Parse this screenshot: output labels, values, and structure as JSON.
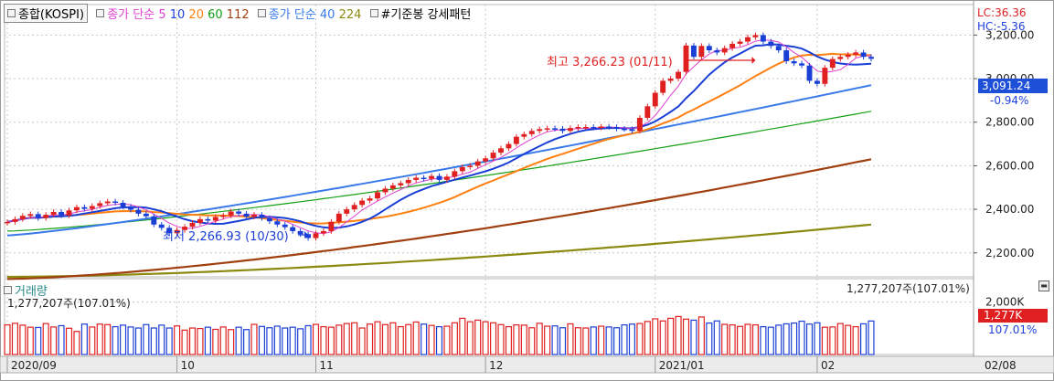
{
  "legend": {
    "index_name": "종합(KOSPI)",
    "ma_label": "종가 단순",
    "ma_periods": [
      "5",
      "10",
      "20",
      "60",
      "112"
    ],
    "ma_colors": [
      "#e040d0",
      "#1a3fd6",
      "#ff7f10",
      "#14a014",
      "#a04010"
    ],
    "ma2_label": "종가 단순",
    "ma2_periods": [
      "40",
      "224"
    ],
    "ma2_colors": [
      "#3a7ae8",
      "#8a8a10"
    ],
    "pattern_label": "#기준봉 강세패턴"
  },
  "right_panel": {
    "lc": "LC:36.36",
    "hc": "HC:-5.36",
    "current_price": "3,091.24",
    "current_change": "-0.94%",
    "volume_current": "1,277K",
    "volume_pct": "107.01%"
  },
  "annotations": {
    "high": "최고 3,266.23 (01/11)",
    "low": "최저 2,266.93 (10/30)"
  },
  "volume_panel": {
    "title": "거래량",
    "last_value_text": "1,277,207주(107.01%)",
    "close_icon": "close-icon"
  },
  "colors": {
    "up": "#e02020",
    "down": "#1a3fd6",
    "grid": "#c8c8c8"
  },
  "chart_data": [
    {
      "type": "candlestick",
      "title": "종합(KOSPI)",
      "ylim": [
        2090,
        3340
      ],
      "y_ticks": [
        "3,200.00",
        "3,000.00",
        "2,800.00",
        "2,600.00",
        "2,400.00",
        "2,200.00"
      ],
      "y_tick_values": [
        3200,
        3000,
        2800,
        2600,
        2400,
        2200
      ],
      "x_tick_labels": [
        "2020/09",
        "10",
        "11",
        "12",
        "2021/01",
        "02",
        "02/08"
      ],
      "x_tick_indices": [
        0,
        22,
        40,
        62,
        84,
        105,
        128
      ],
      "high": {
        "value": 3266.23,
        "date": "01/11"
      },
      "low": {
        "value": 2266.93,
        "date": "10/30"
      },
      "last_close": 3091.24,
      "ma_endpoints": {
        "ma20": 3080,
        "ma40": 2970,
        "ma60": 2850,
        "ma112": 2630,
        "ma224": 2330
      },
      "ma_startpoints": {
        "ma20": 2360,
        "ma40": 2280,
        "ma60": 2300,
        "ma112": 2080,
        "ma224": 2090
      },
      "closes": [
        2342,
        2355,
        2370,
        2378,
        2360,
        2375,
        2388,
        2372,
        2395,
        2410,
        2402,
        2415,
        2428,
        2436,
        2430,
        2412,
        2398,
        2380,
        2368,
        2330,
        2315,
        2290,
        2305,
        2320,
        2338,
        2355,
        2348,
        2365,
        2372,
        2390,
        2380,
        2366,
        2375,
        2360,
        2345,
        2330,
        2318,
        2300,
        2286,
        2268,
        2290,
        2300,
        2343,
        2380,
        2400,
        2420,
        2440,
        2450,
        2478,
        2495,
        2510,
        2520,
        2535,
        2545,
        2540,
        2553,
        2535,
        2550,
        2575,
        2594,
        2600,
        2620,
        2634,
        2660,
        2680,
        2700,
        2733,
        2745,
        2760,
        2768,
        2772,
        2770,
        2760,
        2773,
        2778,
        2778,
        2775,
        2780,
        2778,
        2770,
        2768,
        2760,
        2820,
        2873,
        2935,
        2990,
        3000,
        3031,
        3152,
        3100,
        3150,
        3130,
        3120,
        3140,
        3160,
        3170,
        3190,
        3200,
        3170,
        3150,
        3130,
        3080,
        3070,
        3060,
        2990,
        2976,
        3050,
        3090,
        3100,
        3110,
        3120,
        3100,
        3091
      ],
      "volume_ylim": [
        0,
        2300
      ],
      "volume_tick": "2,000K",
      "volumes": [
        1130,
        1190,
        1120,
        1040,
        1030,
        1180,
        1050,
        1100,
        1000,
        880,
        1160,
        1050,
        1160,
        1140,
        1060,
        1120,
        1050,
        1010,
        1140,
        1010,
        1120,
        1010,
        1090,
        930,
        1010,
        990,
        1040,
        960,
        1050,
        950,
        1040,
        950,
        1150,
        1070,
        1020,
        1080,
        1010,
        1040,
        980,
        1100,
        1150,
        1060,
        1040,
        1120,
        1180,
        1210,
        1010,
        1160,
        1250,
        1140,
        1210,
        1060,
        1140,
        1240,
        1160,
        1110,
        1060,
        1080,
        1210,
        1380,
        1250,
        1310,
        1250,
        1210,
        1140,
        1060,
        1130,
        1120,
        1020,
        1190,
        1080,
        1090,
        1020,
        1170,
        1020,
        1010,
        1050,
        1080,
        1050,
        1020,
        1130,
        1160,
        1180,
        1260,
        1360,
        1280,
        1380,
        1450,
        1350,
        1310,
        1430,
        1200,
        1280,
        1150,
        1130,
        1070,
        1150,
        1130,
        1060,
        1040,
        1120,
        1170,
        1200,
        1270,
        1160,
        1210,
        1040,
        1050,
        1180,
        1110,
        1060,
        1170,
        1277
      ]
    }
  ]
}
